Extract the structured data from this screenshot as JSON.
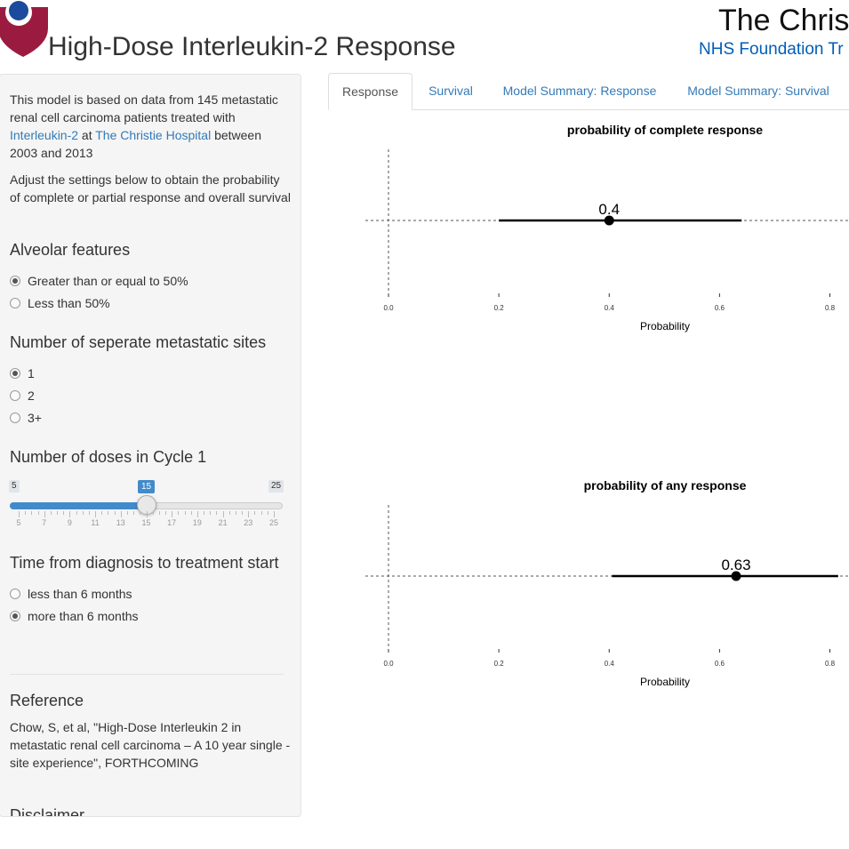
{
  "header": {
    "title": "High-Dose Interleukin-2 Response",
    "brand_name": "The Christ",
    "brand_sub": "NHS Foundation Tr"
  },
  "colors": {
    "logo_red": "#9b1b40",
    "logo_blue": "#1a4b9c",
    "link": "#337ab7",
    "brand_blue": "#005eb8",
    "slider_blue": "#428bca"
  },
  "sidebar": {
    "intro": {
      "t1": "This model is based on data from 145 metastatic renal cell carcinoma patients treated with ",
      "link1": "Interleukin-2",
      "t2": " at ",
      "link2": "The Christie Hospital",
      "t3": " between 2003 and 2013"
    },
    "adjust": "Adjust the settings below to obtain the probability of complete or partial response and overall survival",
    "alveolar": {
      "heading": "Alveolar features",
      "options": [
        "Greater than or equal to 50%",
        "Less than 50%"
      ],
      "selected": 0
    },
    "metastatic": {
      "heading": "Number of seperate metastatic sites",
      "options": [
        "1",
        "2",
        "3+"
      ],
      "selected": 0
    },
    "doses": {
      "heading": "Number of doses in Cycle 1",
      "min": 5,
      "max": 25,
      "value": 15,
      "min_label": "5",
      "max_label": "25",
      "value_label": "15",
      "tick_labels": [
        "5",
        "7",
        "9",
        "11",
        "13",
        "15",
        "17",
        "19",
        "21",
        "23",
        "25"
      ]
    },
    "time": {
      "heading": "Time from diagnosis to treatment start",
      "options": [
        "less than 6 months",
        "more than 6 months"
      ],
      "selected": 1
    },
    "reference": {
      "heading": "Reference",
      "text": "Chow, S, et al, \"High-Dose Interleukin 2 in metastatic renal cell carcinoma – A 10 year single - site experience\", FORTHCOMING"
    },
    "disclaimer": {
      "heading": "Disclaimer"
    }
  },
  "tabs": [
    {
      "label": "Response",
      "active": true
    },
    {
      "label": "Survival",
      "active": false
    },
    {
      "label": "Model Summary: Response",
      "active": false
    },
    {
      "label": "Model Summary: Survival",
      "active": false
    }
  ],
  "chart_data": [
    {
      "type": "scatter",
      "title": "probability of complete response",
      "xlabel": "Probability",
      "ylabel": "",
      "xlim": [
        0,
        0.8
      ],
      "x_ticks": [
        "0.0",
        "0.2",
        "0.4",
        "0.6",
        "0.8"
      ],
      "estimate": 0.4,
      "estimate_label": "0.4",
      "ci": [
        0.2,
        0.64
      ],
      "reference_line_x": 0,
      "grid": false
    },
    {
      "type": "scatter",
      "title": "probability of any response",
      "xlabel": "Probability",
      "ylabel": "",
      "xlim": [
        0,
        0.8
      ],
      "x_ticks": [
        "0.0",
        "0.2",
        "0.4",
        "0.6",
        "0.8"
      ],
      "estimate": 0.63,
      "estimate_label": "0.63",
      "ci": [
        0.405,
        0.815
      ],
      "reference_line_x": 0,
      "grid": false
    }
  ]
}
